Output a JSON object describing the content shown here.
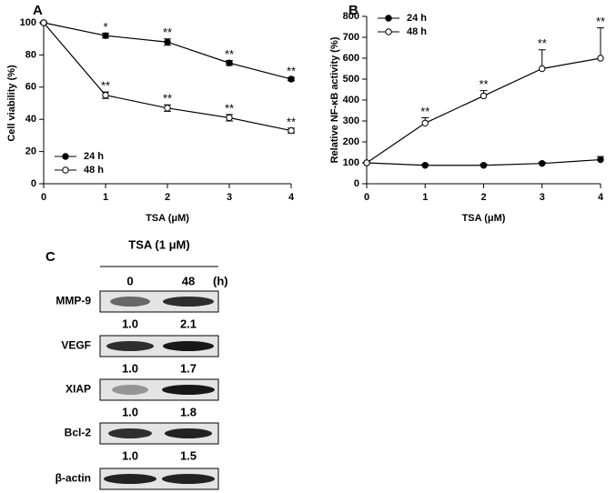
{
  "chart_data": [
    {
      "type": "line",
      "panel": "A",
      "x_label": "TSA (μM)",
      "y_label": "Cell viability (%)",
      "xlim": [
        0,
        4
      ],
      "xticks": [
        0,
        1,
        2,
        3,
        4
      ],
      "ylim": [
        0,
        100
      ],
      "yticks": [
        0,
        20,
        40,
        60,
        80,
        100
      ],
      "legend": "lower left",
      "error_bars": "both",
      "series": [
        {
          "name": "24 h",
          "color": "#000000",
          "x": [
            0,
            1,
            2,
            3,
            4
          ],
          "values": [
            100,
            92,
            88,
            75,
            65
          ],
          "errors": [
            0.5,
            1.5,
            2,
            1.5,
            1
          ]
        },
        {
          "name": "48 h",
          "color": "#ffffff",
          "x": [
            0,
            1,
            2,
            3,
            4
          ],
          "values": [
            100,
            55,
            47,
            41,
            33
          ],
          "errors": [
            0.5,
            2,
            2,
            2,
            1.5
          ]
        }
      ],
      "annotations": [
        {
          "x": 1,
          "series": "24 h",
          "text": "*"
        },
        {
          "x": 2,
          "series": "24 h",
          "text": "**"
        },
        {
          "x": 3,
          "series": "24 h",
          "text": "**"
        },
        {
          "x": 4,
          "series": "24 h",
          "text": "**"
        },
        {
          "x": 1,
          "series": "48 h",
          "text": "**"
        },
        {
          "x": 2,
          "series": "48 h",
          "text": "**"
        },
        {
          "x": 3,
          "series": "48 h",
          "text": "**"
        },
        {
          "x": 4,
          "series": "48 h",
          "text": "**"
        }
      ]
    },
    {
      "type": "line",
      "panel": "B",
      "x_label": "TSA (μM)",
      "y_label": "Relative NF-κB activity (%)",
      "xlim": [
        0,
        4
      ],
      "xticks": [
        0,
        1,
        2,
        3,
        4
      ],
      "ylim": [
        0,
        800
      ],
      "yticks": [
        0,
        100,
        200,
        300,
        400,
        500,
        600,
        700,
        800
      ],
      "legend": "upper left",
      "error_bars": "upper",
      "series": [
        {
          "name": "24 h",
          "color": "#000000",
          "x": [
            0,
            1,
            2,
            3,
            4
          ],
          "values": [
            100,
            88,
            88,
            97,
            115
          ],
          "errors": [
            2,
            6,
            6,
            6,
            15
          ]
        },
        {
          "name": "48 h",
          "color": "#ffffff",
          "x": [
            0,
            1,
            2,
            3,
            4
          ],
          "values": [
            100,
            290,
            420,
            550,
            600
          ],
          "errors": [
            2,
            25,
            25,
            90,
            145
          ]
        }
      ],
      "annotations": [
        {
          "x": 1,
          "series": "48 h",
          "text": "**"
        },
        {
          "x": 2,
          "series": "48 h",
          "text": "**"
        },
        {
          "x": 3,
          "series": "48 h",
          "text": "**"
        },
        {
          "x": 4,
          "series": "48 h",
          "text": "**"
        }
      ]
    }
  ],
  "blot": {
    "panel": "C",
    "title": "TSA (1 μM)",
    "lanes": [
      "0",
      "48"
    ],
    "unit": "(h)",
    "rows": [
      {
        "label": "MMP-9",
        "ratios": [
          "1.0",
          "2.1"
        ]
      },
      {
        "label": "VEGF",
        "ratios": [
          "1.0",
          "1.7"
        ]
      },
      {
        "label": "XIAP",
        "ratios": [
          "1.0",
          "1.8"
        ]
      },
      {
        "label": "Bcl-2",
        "ratios": [
          "1.0",
          "1.5"
        ]
      },
      {
        "label": "β-actin"
      }
    ]
  }
}
